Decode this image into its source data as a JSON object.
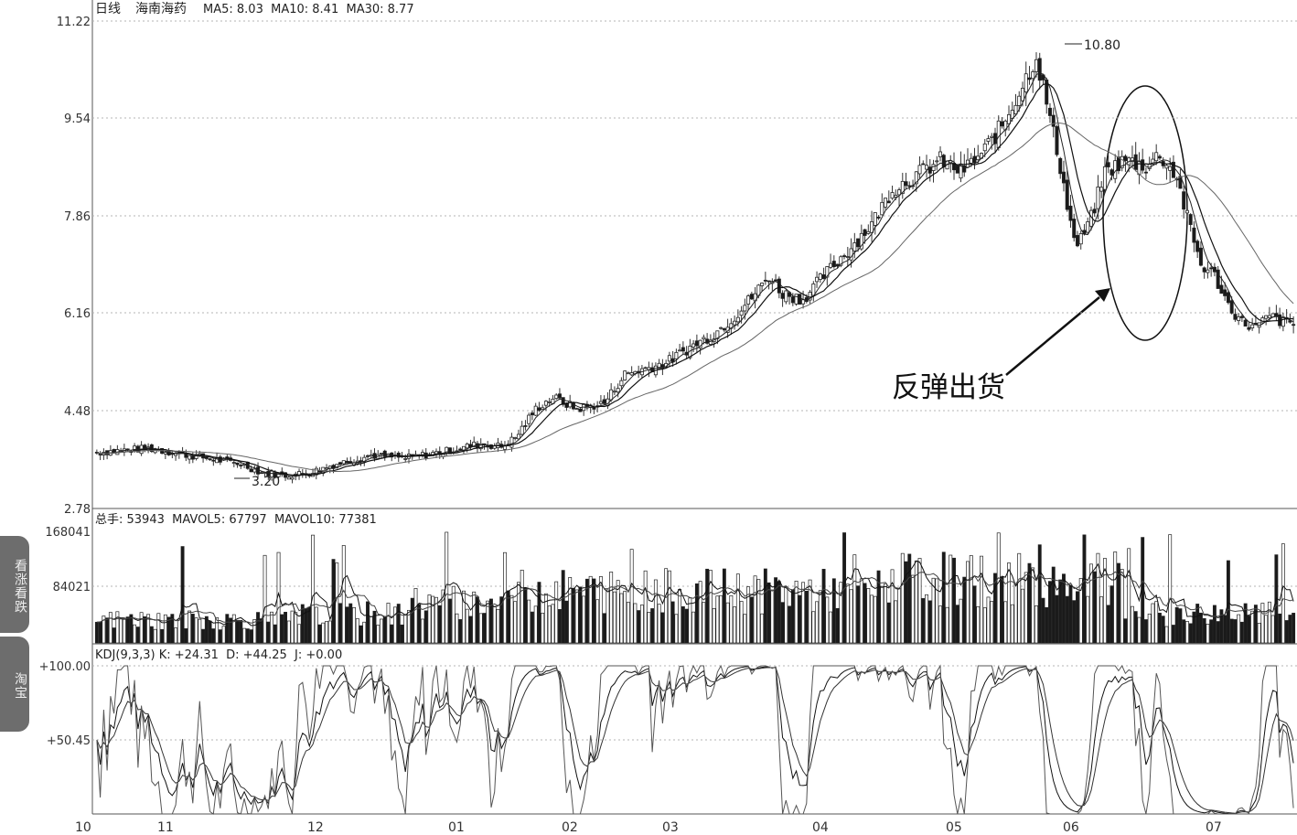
{
  "header": {
    "period": "日线",
    "stock_name": "海南海药",
    "ma_text": "MA5: 8.03  MA10: 8.41  MA30: 8.77"
  },
  "tabs": [
    "看涨看跌",
    "淘宝"
  ],
  "annotation": {
    "text": "反弹出货"
  },
  "colors": {
    "background": "#ffffff",
    "grid": "#b4b4b4",
    "candle": "#222222",
    "ma": "#333333",
    "tab": "#6d6d6d"
  },
  "chart_data": [
    {
      "type": "candlestick",
      "panel": "price",
      "yticks": [
        "11.22",
        "9.54",
        "7.86",
        "6.16",
        "4.48",
        "2.78"
      ],
      "ylim": [
        2.78,
        11.22
      ],
      "high_label": "10.80",
      "low_label": "3.20",
      "x_tick_labels": [
        "10",
        "11",
        "12",
        "01",
        "02",
        "03",
        "04",
        "05",
        "06",
        "07"
      ],
      "series": [
        {
          "name": "MA5",
          "last": 8.03
        },
        {
          "name": "MA10",
          "last": 8.41
        },
        {
          "name": "MA30",
          "last": 8.77
        }
      ],
      "close_path": [
        [
          0,
          3.75
        ],
        [
          15,
          3.82
        ],
        [
          25,
          3.72
        ],
        [
          35,
          3.62
        ],
        [
          42,
          3.55
        ],
        [
          48,
          3.4
        ],
        [
          55,
          3.35
        ],
        [
          62,
          3.4
        ],
        [
          70,
          3.55
        ],
        [
          80,
          3.7
        ],
        [
          90,
          3.65
        ],
        [
          100,
          3.75
        ],
        [
          108,
          3.85
        ],
        [
          112,
          3.9
        ],
        [
          118,
          3.85
        ],
        [
          122,
          4.0
        ],
        [
          128,
          4.5
        ],
        [
          133,
          4.7
        ],
        [
          140,
          4.5
        ],
        [
          148,
          4.6
        ],
        [
          154,
          5.1
        ],
        [
          160,
          5.2
        ],
        [
          166,
          5.3
        ],
        [
          174,
          5.6
        ],
        [
          180,
          5.8
        ],
        [
          186,
          6.1
        ],
        [
          192,
          6.5
        ],
        [
          196,
          6.8
        ],
        [
          200,
          6.5
        ],
        [
          206,
          6.4
        ],
        [
          212,
          6.8
        ],
        [
          220,
          7.3
        ],
        [
          226,
          7.7
        ],
        [
          232,
          8.3
        ],
        [
          238,
          8.5
        ],
        [
          246,
          8.8
        ],
        [
          252,
          8.6
        ],
        [
          258,
          8.9
        ],
        [
          264,
          9.4
        ],
        [
          270,
          10.1
        ],
        [
          274,
          10.6
        ],
        [
          277,
          9.8
        ],
        [
          281,
          8.7
        ],
        [
          284,
          7.7
        ],
        [
          286,
          7.3
        ],
        [
          290,
          7.8
        ],
        [
          294,
          8.6
        ],
        [
          300,
          8.8
        ],
        [
          306,
          8.7
        ],
        [
          310,
          8.9
        ],
        [
          315,
          8.5
        ],
        [
          318,
          7.8
        ],
        [
          322,
          7.0
        ],
        [
          326,
          6.8
        ],
        [
          330,
          6.3
        ],
        [
          334,
          6.0
        ],
        [
          338,
          5.9
        ],
        [
          342,
          6.1
        ],
        [
          346,
          6.0
        ],
        [
          350,
          5.95
        ]
      ]
    },
    {
      "type": "bar",
      "panel": "volume",
      "title": "总手: 53943  MAVOL5: 67797  MAVOL10: 77381",
      "yticks": [
        "168041",
        "84021"
      ],
      "ylim": [
        0,
        168041
      ],
      "series": [
        {
          "name": "总手",
          "last": 53943
        },
        {
          "name": "MAVOL5",
          "last": 67797
        },
        {
          "name": "MAVOL10",
          "last": 77381
        }
      ]
    },
    {
      "type": "line",
      "panel": "kdj",
      "title": "KDJ(9,3,3) K: +24.31  D: +44.25  J: +0.00",
      "yticks": [
        "+100.00",
        "+50.45"
      ],
      "ylim": [
        0,
        100
      ],
      "series": [
        {
          "name": "K",
          "last": 24.31
        },
        {
          "name": "D",
          "last": 44.25
        },
        {
          "name": "J",
          "last": 0.0
        }
      ]
    }
  ]
}
